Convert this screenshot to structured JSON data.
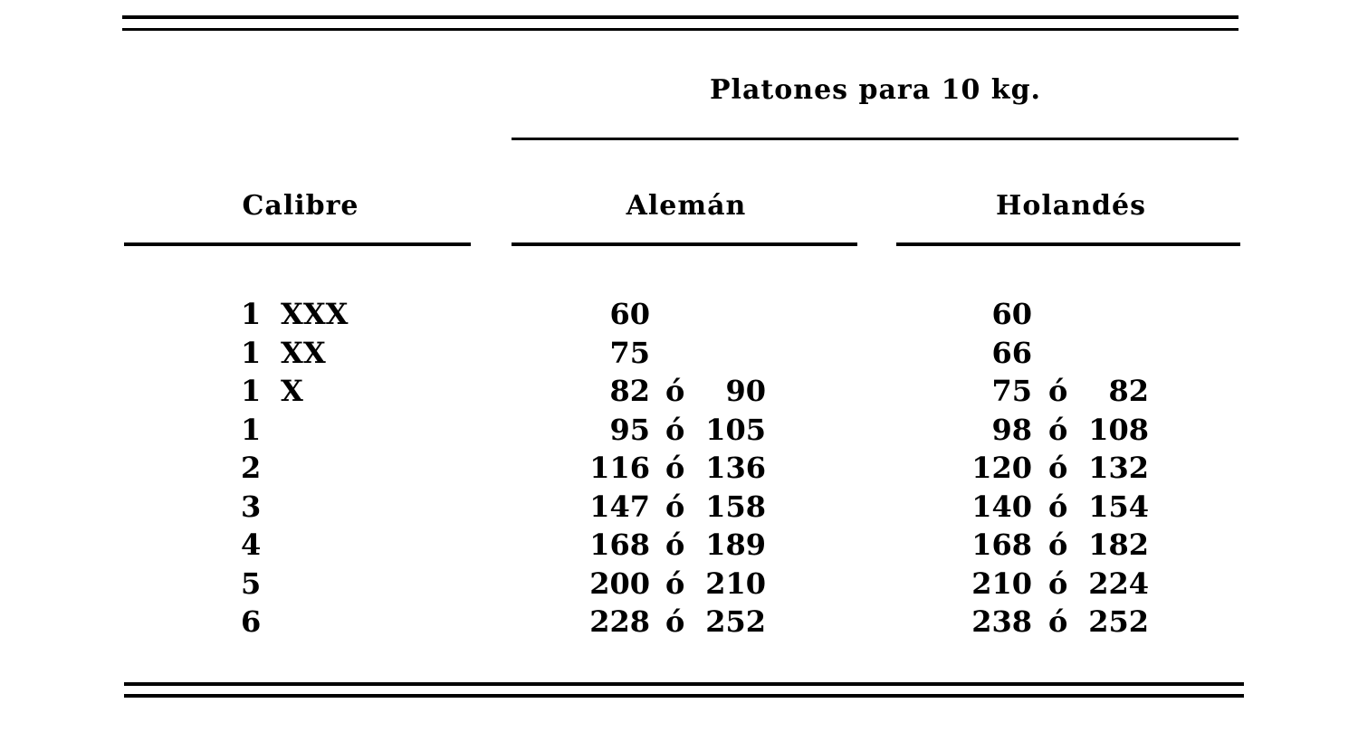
{
  "table": {
    "group_header": "Platones para 10 kg.",
    "columns": [
      "Calibre",
      "Alemán",
      "Holandés"
    ],
    "separator": "ó",
    "rows": [
      {
        "num": "1",
        "mark": "XXX",
        "aleman": [
          "60",
          ""
        ],
        "holandes": [
          "60",
          ""
        ]
      },
      {
        "num": "1",
        "mark": "XX",
        "aleman": [
          "75",
          ""
        ],
        "holandes": [
          "66",
          ""
        ]
      },
      {
        "num": "1",
        "mark": "X",
        "aleman": [
          "82",
          "90"
        ],
        "holandes": [
          "75",
          "82"
        ]
      },
      {
        "num": "1",
        "mark": "",
        "aleman": [
          "95",
          "105"
        ],
        "holandes": [
          "98",
          "108"
        ]
      },
      {
        "num": "2",
        "mark": "",
        "aleman": [
          "116",
          "136"
        ],
        "holandes": [
          "120",
          "132"
        ]
      },
      {
        "num": "3",
        "mark": "",
        "aleman": [
          "147",
          "158"
        ],
        "holandes": [
          "140",
          "154"
        ]
      },
      {
        "num": "4",
        "mark": "",
        "aleman": [
          "168",
          "189"
        ],
        "holandes": [
          "168",
          "182"
        ]
      },
      {
        "num": "5",
        "mark": "",
        "aleman": [
          "200",
          "210"
        ],
        "holandes": [
          "210",
          "224"
        ]
      },
      {
        "num": "6",
        "mark": "",
        "aleman": [
          "228",
          "252"
        ],
        "holandes": [
          "238",
          "252"
        ]
      }
    ]
  }
}
